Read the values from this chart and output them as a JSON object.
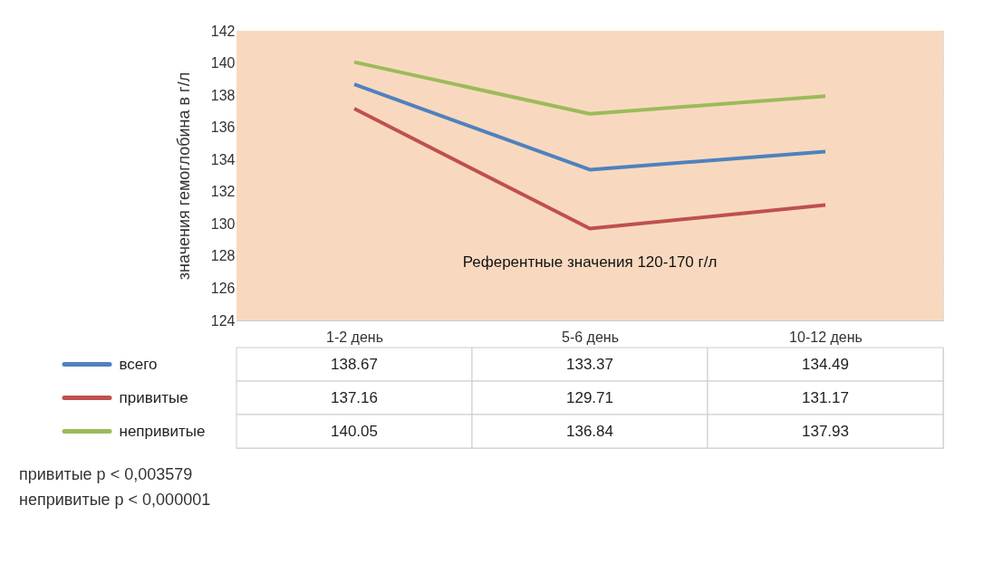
{
  "chart_data": {
    "type": "line",
    "ylabel": "значения гемоглобина в г/л",
    "categories": [
      "1-2 день",
      "5-6 день",
      "10-12 день"
    ],
    "series": [
      {
        "name": "всего",
        "color": "#4f81bd",
        "values": [
          138.67,
          133.37,
          134.49
        ]
      },
      {
        "name": "привитые",
        "color": "#c0504d",
        "values": [
          137.16,
          129.71,
          131.17
        ]
      },
      {
        "name": "непривитые",
        "color": "#9bbb59",
        "values": [
          140.05,
          136.84,
          137.93
        ]
      }
    ],
    "ylim": [
      124,
      142
    ],
    "yticks": [
      124,
      126,
      128,
      130,
      132,
      134,
      136,
      138,
      140,
      142
    ],
    "grid": "y",
    "legend": "bottom",
    "data_labels": true,
    "marker": "none",
    "line_style": "solid",
    "bands": [
      {
        "axis": "y",
        "from": 124,
        "to": 142,
        "label": "Референтные значения  120-170 г/л",
        "color": "#f8d9bf"
      }
    ],
    "annotations": [
      "привитые p < 0,003579",
      "непривитые p < 0,000001"
    ]
  }
}
